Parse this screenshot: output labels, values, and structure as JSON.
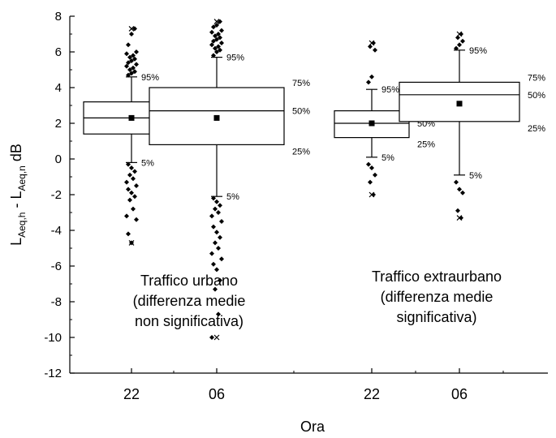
{
  "chart_data": {
    "type": "box",
    "xlabel": "Ora",
    "ylabel": {
      "main": "L",
      "sub1": "Aeq,h",
      "mid": " - L",
      "sub2": "Aeq,n",
      "unit": "   dB"
    },
    "ylim": [
      -12,
      8
    ],
    "yticks": [
      -12,
      -10,
      -8,
      -6,
      -4,
      -2,
      0,
      2,
      4,
      6,
      8
    ],
    "categories": [
      "22",
      "06",
      "22",
      "06"
    ],
    "percentile_labels": {
      "p75": "75%",
      "p50": "50%",
      "p25": "25%",
      "p95": "95%",
      "p5": "5%"
    },
    "boxes": [
      {
        "category": "22",
        "p5": -0.2,
        "p25": 1.4,
        "p50": 2.3,
        "p75": 3.2,
        "p95": 4.6,
        "mean": 2.3,
        "min": -4.7,
        "max": 7.3,
        "outliers_high": [
          4.7,
          4.8,
          4.9,
          5.0,
          5.1,
          5.2,
          5.3,
          5.4,
          5.5,
          5.6,
          5.7,
          5.8,
          5.9,
          6.0,
          6.4,
          7.0,
          7.3
        ],
        "outliers_low": [
          -0.3,
          -0.5,
          -0.7,
          -0.9,
          -1.1,
          -1.3,
          -1.5,
          -1.7,
          -1.9,
          -2.1,
          -2.3,
          -2.8,
          -3.2,
          -3.4,
          -4.2,
          -4.7
        ]
      },
      {
        "category": "06",
        "p5": -2.1,
        "p25": 0.8,
        "p50": 2.7,
        "p75": 4.0,
        "p95": 5.7,
        "mean": 2.3,
        "min": -10.0,
        "max": 7.7,
        "outliers_high": [
          5.8,
          6.0,
          6.1,
          6.2,
          6.3,
          6.4,
          6.5,
          6.6,
          6.7,
          6.8,
          6.9,
          7.0,
          7.1,
          7.2,
          7.4,
          7.5,
          7.7
        ],
        "outliers_low": [
          -2.2,
          -2.4,
          -2.6,
          -2.8,
          -3.0,
          -3.2,
          -3.5,
          -3.8,
          -4.1,
          -4.4,
          -4.7,
          -5.0,
          -5.3,
          -5.6,
          -5.9,
          -6.2,
          -6.8,
          -7.3,
          -8.7,
          -10.0
        ]
      },
      {
        "category": "22",
        "p5": 0.1,
        "p25": 1.2,
        "p50": 2.0,
        "p75": 2.7,
        "p95": 3.9,
        "mean": 2.0,
        "min": -2.0,
        "max": 6.5,
        "outliers_high": [
          4.3,
          4.6,
          6.1,
          6.3,
          6.5
        ],
        "outliers_low": [
          -0.3,
          -0.5,
          -0.9,
          -1.3,
          -2.0
        ]
      },
      {
        "category": "06",
        "p5": -0.9,
        "p25": 2.1,
        "p50": 3.6,
        "p75": 4.3,
        "p95": 6.1,
        "mean": 3.1,
        "min": -3.3,
        "max": 7.0,
        "outliers_high": [
          6.2,
          6.4,
          6.6,
          6.8,
          7.0
        ],
        "outliers_low": [
          -1.3,
          -1.7,
          -1.9,
          -2.9,
          -3.3
        ]
      }
    ],
    "annotations": {
      "urban": [
        "Traffico urbano",
        "(differenza medie",
        "non significativa)"
      ],
      "extra": [
        "Traffico extraurbano",
        "(differenza medie",
        "significativa)"
      ]
    }
  }
}
